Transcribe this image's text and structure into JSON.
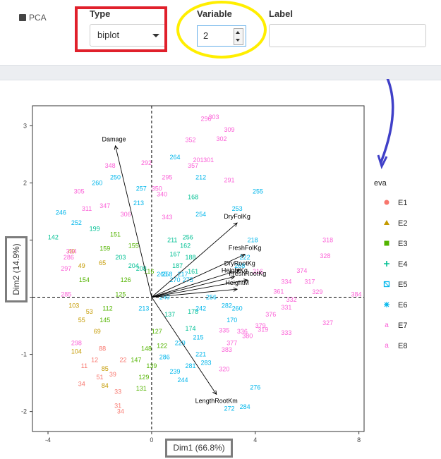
{
  "tab_label": "PCA",
  "controls": {
    "type_label": "Type",
    "type_value": "biplot",
    "variable_label": "Variable",
    "variable_value": "2",
    "label_label": "Label",
    "label_value": ""
  },
  "annotation_colors": {
    "red": "#e0202b",
    "yellow": "#ffee00",
    "arrow": "#4040c8",
    "box": "#7d7d7d"
  },
  "chart_data": {
    "type": "scatter",
    "xlabel": "Dim1 (66.8%)",
    "ylabel": "Dim2 (14.9%)",
    "xlim": [
      -4.6,
      8.2
    ],
    "ylim": [
      -2.35,
      3.35
    ],
    "xticks": [
      -4,
      0,
      4,
      8
    ],
    "yticks": [
      -2,
      -1,
      0,
      1,
      2,
      3
    ],
    "legend": {
      "title": "eva",
      "placement": "right",
      "entries": [
        {
          "name": "E1",
          "color": "#f8766d",
          "marker": "circle"
        },
        {
          "name": "E2",
          "color": "#c49a00",
          "marker": "triangle"
        },
        {
          "name": "E3",
          "color": "#53b400",
          "marker": "square"
        },
        {
          "name": "E4",
          "color": "#00c094",
          "marker": "plus"
        },
        {
          "name": "E5",
          "color": "#00b6eb",
          "marker": "square-x"
        },
        {
          "name": "E6",
          "color": "#00b6eb",
          "marker": "asterisk"
        },
        {
          "name": "E7",
          "color": "#fb61d7",
          "marker": "a"
        },
        {
          "name": "E8",
          "color": "#fb61d7",
          "marker": "a"
        }
      ]
    },
    "vectors": [
      {
        "name": "Damage",
        "x": -1.4,
        "y": 2.65
      },
      {
        "name": "DryFolKg",
        "x": 3.3,
        "y": 1.3
      },
      {
        "name": "FreshFolKg",
        "x": 3.6,
        "y": 0.75
      },
      {
        "name": "DryRootKg",
        "x": 3.4,
        "y": 0.48
      },
      {
        "name": "HeightKg",
        "x": 3.2,
        "y": 0.36
      },
      {
        "name": "FreshRootKg",
        "x": 3.7,
        "y": 0.3
      },
      {
        "name": "HeightM",
        "x": 3.3,
        "y": 0.14
      },
      {
        "name": "LengthRootKm",
        "x": 2.5,
        "y": -1.7
      }
    ],
    "point_labels": [
      {
        "t": "303",
        "x": 2.4,
        "y": 3.15,
        "g": "E7"
      },
      {
        "t": "296",
        "x": 2.1,
        "y": 3.12,
        "g": "E7"
      },
      {
        "t": "309",
        "x": 3.0,
        "y": 2.93,
        "g": "E7"
      },
      {
        "t": "352",
        "x": 1.5,
        "y": 2.75,
        "g": "E7"
      },
      {
        "t": "302",
        "x": 2.7,
        "y": 2.77,
        "g": "E7"
      },
      {
        "t": "292",
        "x": -0.2,
        "y": 2.35,
        "g": "E7"
      },
      {
        "t": "291",
        "x": 3.0,
        "y": 2.05,
        "g": "E7"
      },
      {
        "t": "255",
        "x": 4.1,
        "y": 1.85,
        "g": "E6"
      },
      {
        "t": "253",
        "x": 3.3,
        "y": 1.55,
        "g": "E6"
      },
      {
        "t": "254",
        "x": 1.9,
        "y": 1.45,
        "g": "E6"
      },
      {
        "t": "318",
        "x": 6.8,
        "y": 1.0,
        "g": "E7"
      },
      {
        "t": "328",
        "x": 6.7,
        "y": 0.72,
        "g": "E7"
      },
      {
        "t": "374",
        "x": 5.8,
        "y": 0.46,
        "g": "E7"
      },
      {
        "t": "317",
        "x": 6.1,
        "y": 0.27,
        "g": "E7"
      },
      {
        "t": "334",
        "x": 5.2,
        "y": 0.27,
        "g": "E7"
      },
      {
        "t": "329",
        "x": 6.4,
        "y": 0.09,
        "g": "E7"
      },
      {
        "t": "384",
        "x": 7.9,
        "y": 0.05,
        "g": "E7"
      },
      {
        "t": "361",
        "x": 4.9,
        "y": 0.1,
        "g": "E7"
      },
      {
        "t": "332",
        "x": 5.4,
        "y": -0.04,
        "g": "E7"
      },
      {
        "t": "331",
        "x": 5.2,
        "y": -0.18,
        "g": "E7"
      },
      {
        "t": "376",
        "x": 4.6,
        "y": -0.3,
        "g": "E7"
      },
      {
        "t": "327",
        "x": 6.8,
        "y": -0.45,
        "g": "E7"
      },
      {
        "t": "379",
        "x": 4.2,
        "y": -0.5,
        "g": "E7"
      },
      {
        "t": "319",
        "x": 4.3,
        "y": -0.57,
        "g": "E7"
      },
      {
        "t": "333",
        "x": 5.2,
        "y": -0.62,
        "g": "E7"
      },
      {
        "t": "335",
        "x": 2.8,
        "y": -0.58,
        "g": "E7"
      },
      {
        "t": "336",
        "x": 3.5,
        "y": -0.6,
        "g": "E7"
      },
      {
        "t": "380",
        "x": 3.7,
        "y": -0.68,
        "g": "E7"
      },
      {
        "t": "377",
        "x": 3.1,
        "y": -0.8,
        "g": "E7"
      },
      {
        "t": "383",
        "x": 2.9,
        "y": -0.92,
        "g": "E7"
      },
      {
        "t": "320",
        "x": 2.8,
        "y": -1.26,
        "g": "E7"
      },
      {
        "t": "276",
        "x": 4.0,
        "y": -1.58,
        "g": "E6"
      },
      {
        "t": "272",
        "x": 3.0,
        "y": -1.95,
        "g": "E6"
      },
      {
        "t": "284",
        "x": 3.6,
        "y": -1.92,
        "g": "E6"
      },
      {
        "t": "283",
        "x": 2.1,
        "y": -1.15,
        "g": "E5"
      },
      {
        "t": "298",
        "x": -2.9,
        "y": -0.8,
        "g": "E7"
      },
      {
        "t": "305",
        "x": -2.8,
        "y": 1.85,
        "g": "E7"
      },
      {
        "t": "311",
        "x": -2.5,
        "y": 1.55,
        "g": "E7"
      },
      {
        "t": "347",
        "x": -1.8,
        "y": 1.6,
        "g": "E7"
      },
      {
        "t": "348",
        "x": -1.6,
        "y": 2.3,
        "g": "E7"
      },
      {
        "t": "306",
        "x": -1.0,
        "y": 1.45,
        "g": "E7"
      },
      {
        "t": "104",
        "x": -2.9,
        "y": -0.95,
        "g": "E2"
      },
      {
        "t": "103",
        "x": -3.0,
        "y": -0.15,
        "g": "E2"
      },
      {
        "t": "55",
        "x": -2.7,
        "y": -0.4,
        "g": "E2"
      },
      {
        "t": "53",
        "x": -2.4,
        "y": -0.25,
        "g": "E2"
      },
      {
        "t": "69",
        "x": -2.1,
        "y": -0.6,
        "g": "E2"
      },
      {
        "t": "49",
        "x": -2.7,
        "y": 0.55,
        "g": "E2"
      },
      {
        "t": "65",
        "x": -1.9,
        "y": 0.6,
        "g": "E2"
      },
      {
        "t": "40",
        "x": -3.1,
        "y": 0.8,
        "g": "E2"
      },
      {
        "t": "34",
        "x": -2.7,
        "y": -1.52,
        "g": "E1"
      },
      {
        "t": "11",
        "x": -2.6,
        "y": -1.2,
        "g": "E1"
      },
      {
        "t": "31",
        "x": -1.3,
        "y": -1.9,
        "g": "E1"
      },
      {
        "t": "33",
        "x": -1.3,
        "y": -1.65,
        "g": "E1"
      },
      {
        "t": "84",
        "x": -1.8,
        "y": -1.55,
        "g": "E2"
      },
      {
        "t": "131",
        "x": -0.4,
        "y": -1.6,
        "g": "E3"
      },
      {
        "t": "129",
        "x": -0.3,
        "y": -1.4,
        "g": "E3"
      },
      {
        "t": "155",
        "x": -0.7,
        "y": 0.9,
        "g": "E3"
      },
      {
        "t": "159",
        "x": -1.8,
        "y": 0.85,
        "g": "E3"
      },
      {
        "t": "199",
        "x": -2.2,
        "y": 1.2,
        "g": "E4"
      },
      {
        "t": "151",
        "x": -1.4,
        "y": 1.1,
        "g": "E3"
      },
      {
        "t": "170",
        "x": 3.1,
        "y": -0.4,
        "g": "E5"
      },
      {
        "t": "260",
        "x": 3.3,
        "y": -0.2,
        "g": "E6"
      },
      {
        "t": "282",
        "x": 2.9,
        "y": -0.15,
        "g": "E6"
      },
      {
        "t": "222",
        "x": 3.6,
        "y": 0.7,
        "g": "E5"
      },
      {
        "t": "218",
        "x": 3.9,
        "y": 1.0,
        "g": "E5"
      },
      {
        "t": "268",
        "x": 3.4,
        "y": 0.55,
        "g": "E5"
      },
      {
        "t": "316",
        "x": 4.1,
        "y": 0.45,
        "g": "E7"
      },
      {
        "t": "201",
        "x": 1.8,
        "y": 2.4,
        "g": "E7"
      },
      {
        "t": "264",
        "x": 0.9,
        "y": 2.45,
        "g": "E6"
      },
      {
        "t": "212",
        "x": 1.9,
        "y": 2.1,
        "g": "E6"
      },
      {
        "t": "168",
        "x": 1.6,
        "y": 1.75,
        "g": "E4"
      },
      {
        "t": "256",
        "x": 1.4,
        "y": 1.05,
        "g": "E4"
      },
      {
        "t": "257",
        "x": -0.4,
        "y": 1.9,
        "g": "E6"
      },
      {
        "t": "350",
        "x": 0.2,
        "y": 1.9,
        "g": "E7"
      },
      {
        "t": "343",
        "x": 0.6,
        "y": 1.4,
        "g": "E7"
      },
      {
        "t": "340",
        "x": 0.4,
        "y": 1.8,
        "g": "E7"
      },
      {
        "t": "213",
        "x": -0.5,
        "y": 1.65,
        "g": "E6"
      },
      {
        "t": "250",
        "x": -1.4,
        "y": 2.1,
        "g": "E6"
      },
      {
        "t": "260",
        "x": -2.1,
        "y": 2.0,
        "g": "E6"
      },
      {
        "t": "142",
        "x": -3.8,
        "y": 1.05,
        "g": "E4"
      },
      {
        "t": "246",
        "x": -3.5,
        "y": 1.48,
        "g": "E6"
      },
      {
        "t": "252",
        "x": -2.9,
        "y": 1.3,
        "g": "E5"
      },
      {
        "t": "304",
        "x": -3.1,
        "y": 0.8,
        "g": "E7"
      },
      {
        "t": "297",
        "x": -3.3,
        "y": 0.5,
        "g": "E7"
      },
      {
        "t": "286",
        "x": -3.2,
        "y": 0.7,
        "g": "E7"
      },
      {
        "t": "285",
        "x": -3.3,
        "y": 0.05,
        "g": "E7"
      },
      {
        "t": "295",
        "x": 0.6,
        "y": 2.1,
        "g": "E7"
      },
      {
        "t": "301",
        "x": 2.2,
        "y": 2.4,
        "g": "E7"
      },
      {
        "t": "357",
        "x": 1.6,
        "y": 2.3,
        "g": "E7"
      },
      {
        "t": "211",
        "x": 0.8,
        "y": 1.0,
        "g": "E4"
      },
      {
        "t": "162",
        "x": 1.3,
        "y": 0.9,
        "g": "E4"
      },
      {
        "t": "116",
        "x": -0.1,
        "y": 0.45,
        "g": "E3"
      },
      {
        "t": "217",
        "x": 1.2,
        "y": 0.4,
        "g": "E5"
      },
      {
        "t": "258",
        "x": 0.6,
        "y": 0.4,
        "g": "E6"
      },
      {
        "t": "126",
        "x": -1.0,
        "y": 0.3,
        "g": "E3"
      },
      {
        "t": "145",
        "x": -1.8,
        "y": -0.4,
        "g": "E3"
      },
      {
        "t": "112",
        "x": -1.7,
        "y": -0.2,
        "g": "E3"
      },
      {
        "t": "122",
        "x": 0.4,
        "y": -0.85,
        "g": "E3"
      },
      {
        "t": "286",
        "x": 0.5,
        "y": -1.05,
        "g": "E5"
      },
      {
        "t": "127",
        "x": 0.2,
        "y": -0.6,
        "g": "E3"
      },
      {
        "t": "137",
        "x": 0.7,
        "y": -0.3,
        "g": "E4"
      },
      {
        "t": "174",
        "x": 1.5,
        "y": -0.55,
        "g": "E4"
      },
      {
        "t": "178",
        "x": 1.6,
        "y": -0.25,
        "g": "E4"
      },
      {
        "t": "221",
        "x": 1.9,
        "y": -1.0,
        "g": "E5"
      },
      {
        "t": "281",
        "x": 1.5,
        "y": -1.2,
        "g": "E5"
      },
      {
        "t": "239",
        "x": 0.9,
        "y": -1.3,
        "g": "E6"
      },
      {
        "t": "244",
        "x": 1.2,
        "y": -1.45,
        "g": "E5"
      },
      {
        "t": "215",
        "x": 1.8,
        "y": -0.7,
        "g": "E5"
      },
      {
        "t": "154",
        "x": -2.6,
        "y": 0.3,
        "g": "E3"
      },
      {
        "t": "125",
        "x": -1.2,
        "y": 0.05,
        "g": "E3"
      },
      {
        "t": "88",
        "x": -1.9,
        "y": -0.9,
        "g": "E1"
      },
      {
        "t": "85",
        "x": -1.8,
        "y": -1.25,
        "g": "E2"
      },
      {
        "t": "12",
        "x": -2.2,
        "y": -1.1,
        "g": "E1"
      },
      {
        "t": "39",
        "x": -1.5,
        "y": -1.35,
        "g": "E1"
      },
      {
        "t": "51",
        "x": -2.0,
        "y": -1.4,
        "g": "E1"
      },
      {
        "t": "22",
        "x": -1.1,
        "y": -1.1,
        "g": "E1"
      },
      {
        "t": "34",
        "x": -1.2,
        "y": -2.0,
        "g": "E1"
      },
      {
        "t": "139",
        "x": 0.0,
        "y": -1.2,
        "g": "E3"
      },
      {
        "t": "147",
        "x": -0.6,
        "y": -1.1,
        "g": "E3"
      },
      {
        "t": "148",
        "x": -0.2,
        "y": -0.9,
        "g": "E3"
      },
      {
        "t": "208",
        "x": -0.4,
        "y": 0.5,
        "g": "E4"
      },
      {
        "t": "204",
        "x": -0.7,
        "y": 0.55,
        "g": "E4"
      },
      {
        "t": "213",
        "x": -0.3,
        "y": -0.2,
        "g": "E5"
      },
      {
        "t": "203",
        "x": -1.2,
        "y": 0.7,
        "g": "E4"
      },
      {
        "t": "249",
        "x": 0.5,
        "y": 0.0,
        "g": "E6"
      },
      {
        "t": "265",
        "x": 0.4,
        "y": 0.4,
        "g": "E6"
      },
      {
        "t": "256",
        "x": 2.3,
        "y": 0.0,
        "g": "E6"
      },
      {
        "t": "242",
        "x": 1.9,
        "y": -0.2,
        "g": "E6"
      },
      {
        "t": "270",
        "x": 0.9,
        "y": 0.3,
        "g": "E5"
      },
      {
        "t": "275",
        "x": 1.4,
        "y": 0.3,
        "g": "E5"
      },
      {
        "t": "229",
        "x": 1.1,
        "y": -0.8,
        "g": "E5"
      },
      {
        "t": "161",
        "x": 1.6,
        "y": 0.45,
        "g": "E4"
      },
      {
        "t": "187",
        "x": 1.0,
        "y": 0.55,
        "g": "E4"
      },
      {
        "t": "188",
        "x": 1.5,
        "y": 0.7,
        "g": "E4"
      },
      {
        "t": "167",
        "x": 0.9,
        "y": 0.75,
        "g": "E4"
      }
    ]
  }
}
